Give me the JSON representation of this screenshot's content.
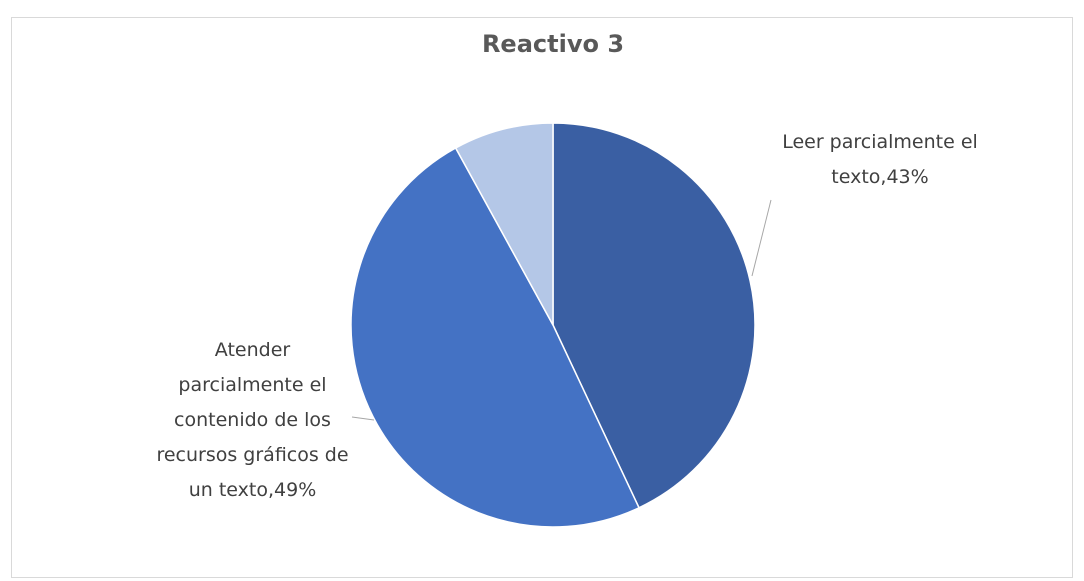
{
  "chart_data": {
    "type": "pie",
    "title": "Reactivo 3",
    "categories": [
      "Leer parcialmente el texto",
      "Atender parcialmente el contenido de los recursos gráficos de un texto",
      null
    ],
    "values": [
      43,
      49,
      8
    ],
    "value_labels": [
      "43%",
      "49%",
      null
    ],
    "label_separator": ",",
    "colors": [
      "#3a5fa3",
      "#4472c4",
      "#b4c7e7"
    ]
  }
}
